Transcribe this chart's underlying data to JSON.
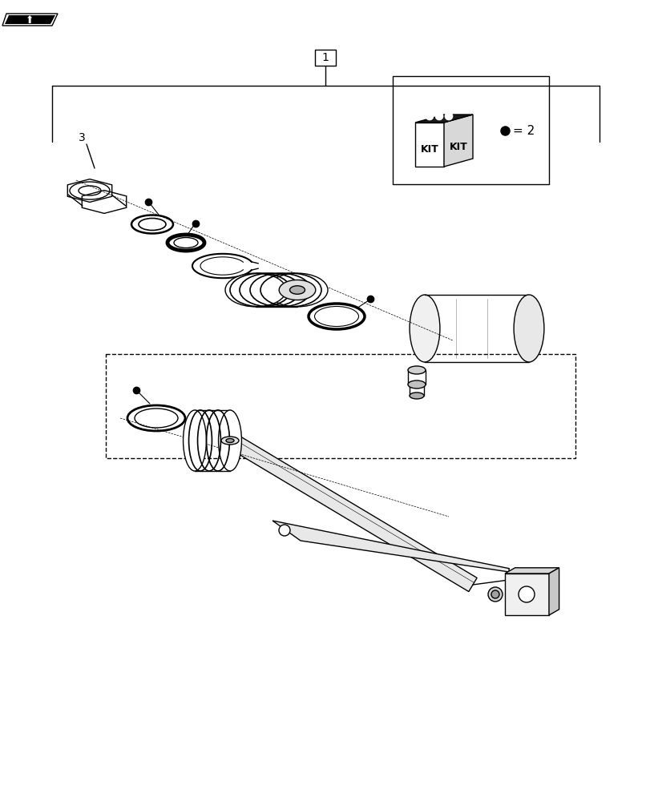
{
  "background_color": "#ffffff",
  "line_color": "#000000",
  "label_1": "1",
  "label_2": "2",
  "label_3": "3",
  "kit_text": "KIT",
  "figsize": [
    8.12,
    10.0
  ],
  "dpi": 100
}
